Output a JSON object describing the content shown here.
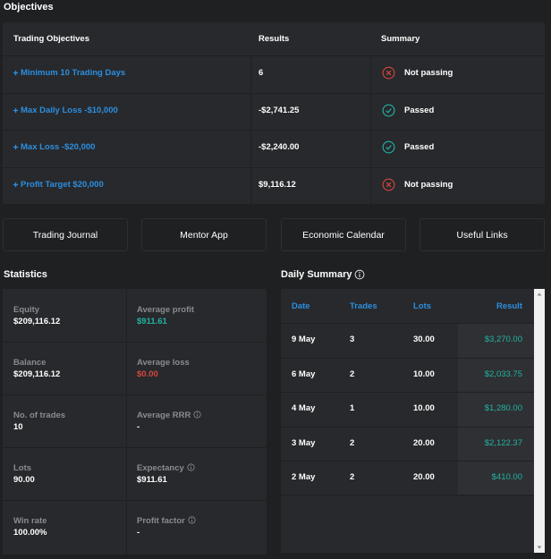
{
  "objectives": {
    "title": "Objectives",
    "headers": [
      "Trading Objectives",
      "Results",
      "Summary"
    ],
    "rows": [
      {
        "objective": "Minimum 10 Trading Days",
        "result": "6",
        "summary": "Not passing",
        "passed": false
      },
      {
        "objective": "Max Daily Loss -$10,000",
        "result": "-$2,741.25",
        "summary": "Passed",
        "passed": true
      },
      {
        "objective": "Max Loss -$20,000",
        "result": "-$2,240.00",
        "summary": "Passed",
        "passed": true
      },
      {
        "objective": "Profit Target $20,000",
        "result": "$9,116.12",
        "summary": "Not passing",
        "passed": false
      }
    ]
  },
  "buttons": [
    "Trading Journal",
    "Mentor App",
    "Economic Calendar",
    "Useful Links"
  ],
  "statistics": {
    "title": "Statistics",
    "cells": [
      {
        "label": "Equity",
        "value": "$209,116.12"
      },
      {
        "label": "Average profit",
        "value": "$911.61",
        "tone": "positive"
      },
      {
        "label": "Balance",
        "value": "$209,116.12"
      },
      {
        "label": "Average loss",
        "value": "$0.00",
        "tone": "negative"
      },
      {
        "label": "No. of trades",
        "value": "10"
      },
      {
        "label": "Average RRR",
        "value": "-",
        "info": true
      },
      {
        "label": "Lots",
        "value": "90.00"
      },
      {
        "label": "Expectancy",
        "value": "$911.61",
        "info": true
      },
      {
        "label": "Win rate",
        "value": "100.00%"
      },
      {
        "label": "Profit factor",
        "value": "-",
        "info": true
      }
    ]
  },
  "daily_summary": {
    "title": "Daily Summary",
    "headers": [
      "Date",
      "Trades",
      "Lots",
      "Result"
    ],
    "rows": [
      [
        "9 May",
        "3",
        "30.00",
        "$3,270.00"
      ],
      [
        "6 May",
        "2",
        "10.00",
        "$2,033.75"
      ],
      [
        "4 May",
        "1",
        "10.00",
        "$1,280.00"
      ],
      [
        "3 May",
        "2",
        "20.00",
        "$2,122.37"
      ],
      [
        "2 May",
        "2",
        "20.00",
        "$410.00"
      ]
    ]
  }
}
